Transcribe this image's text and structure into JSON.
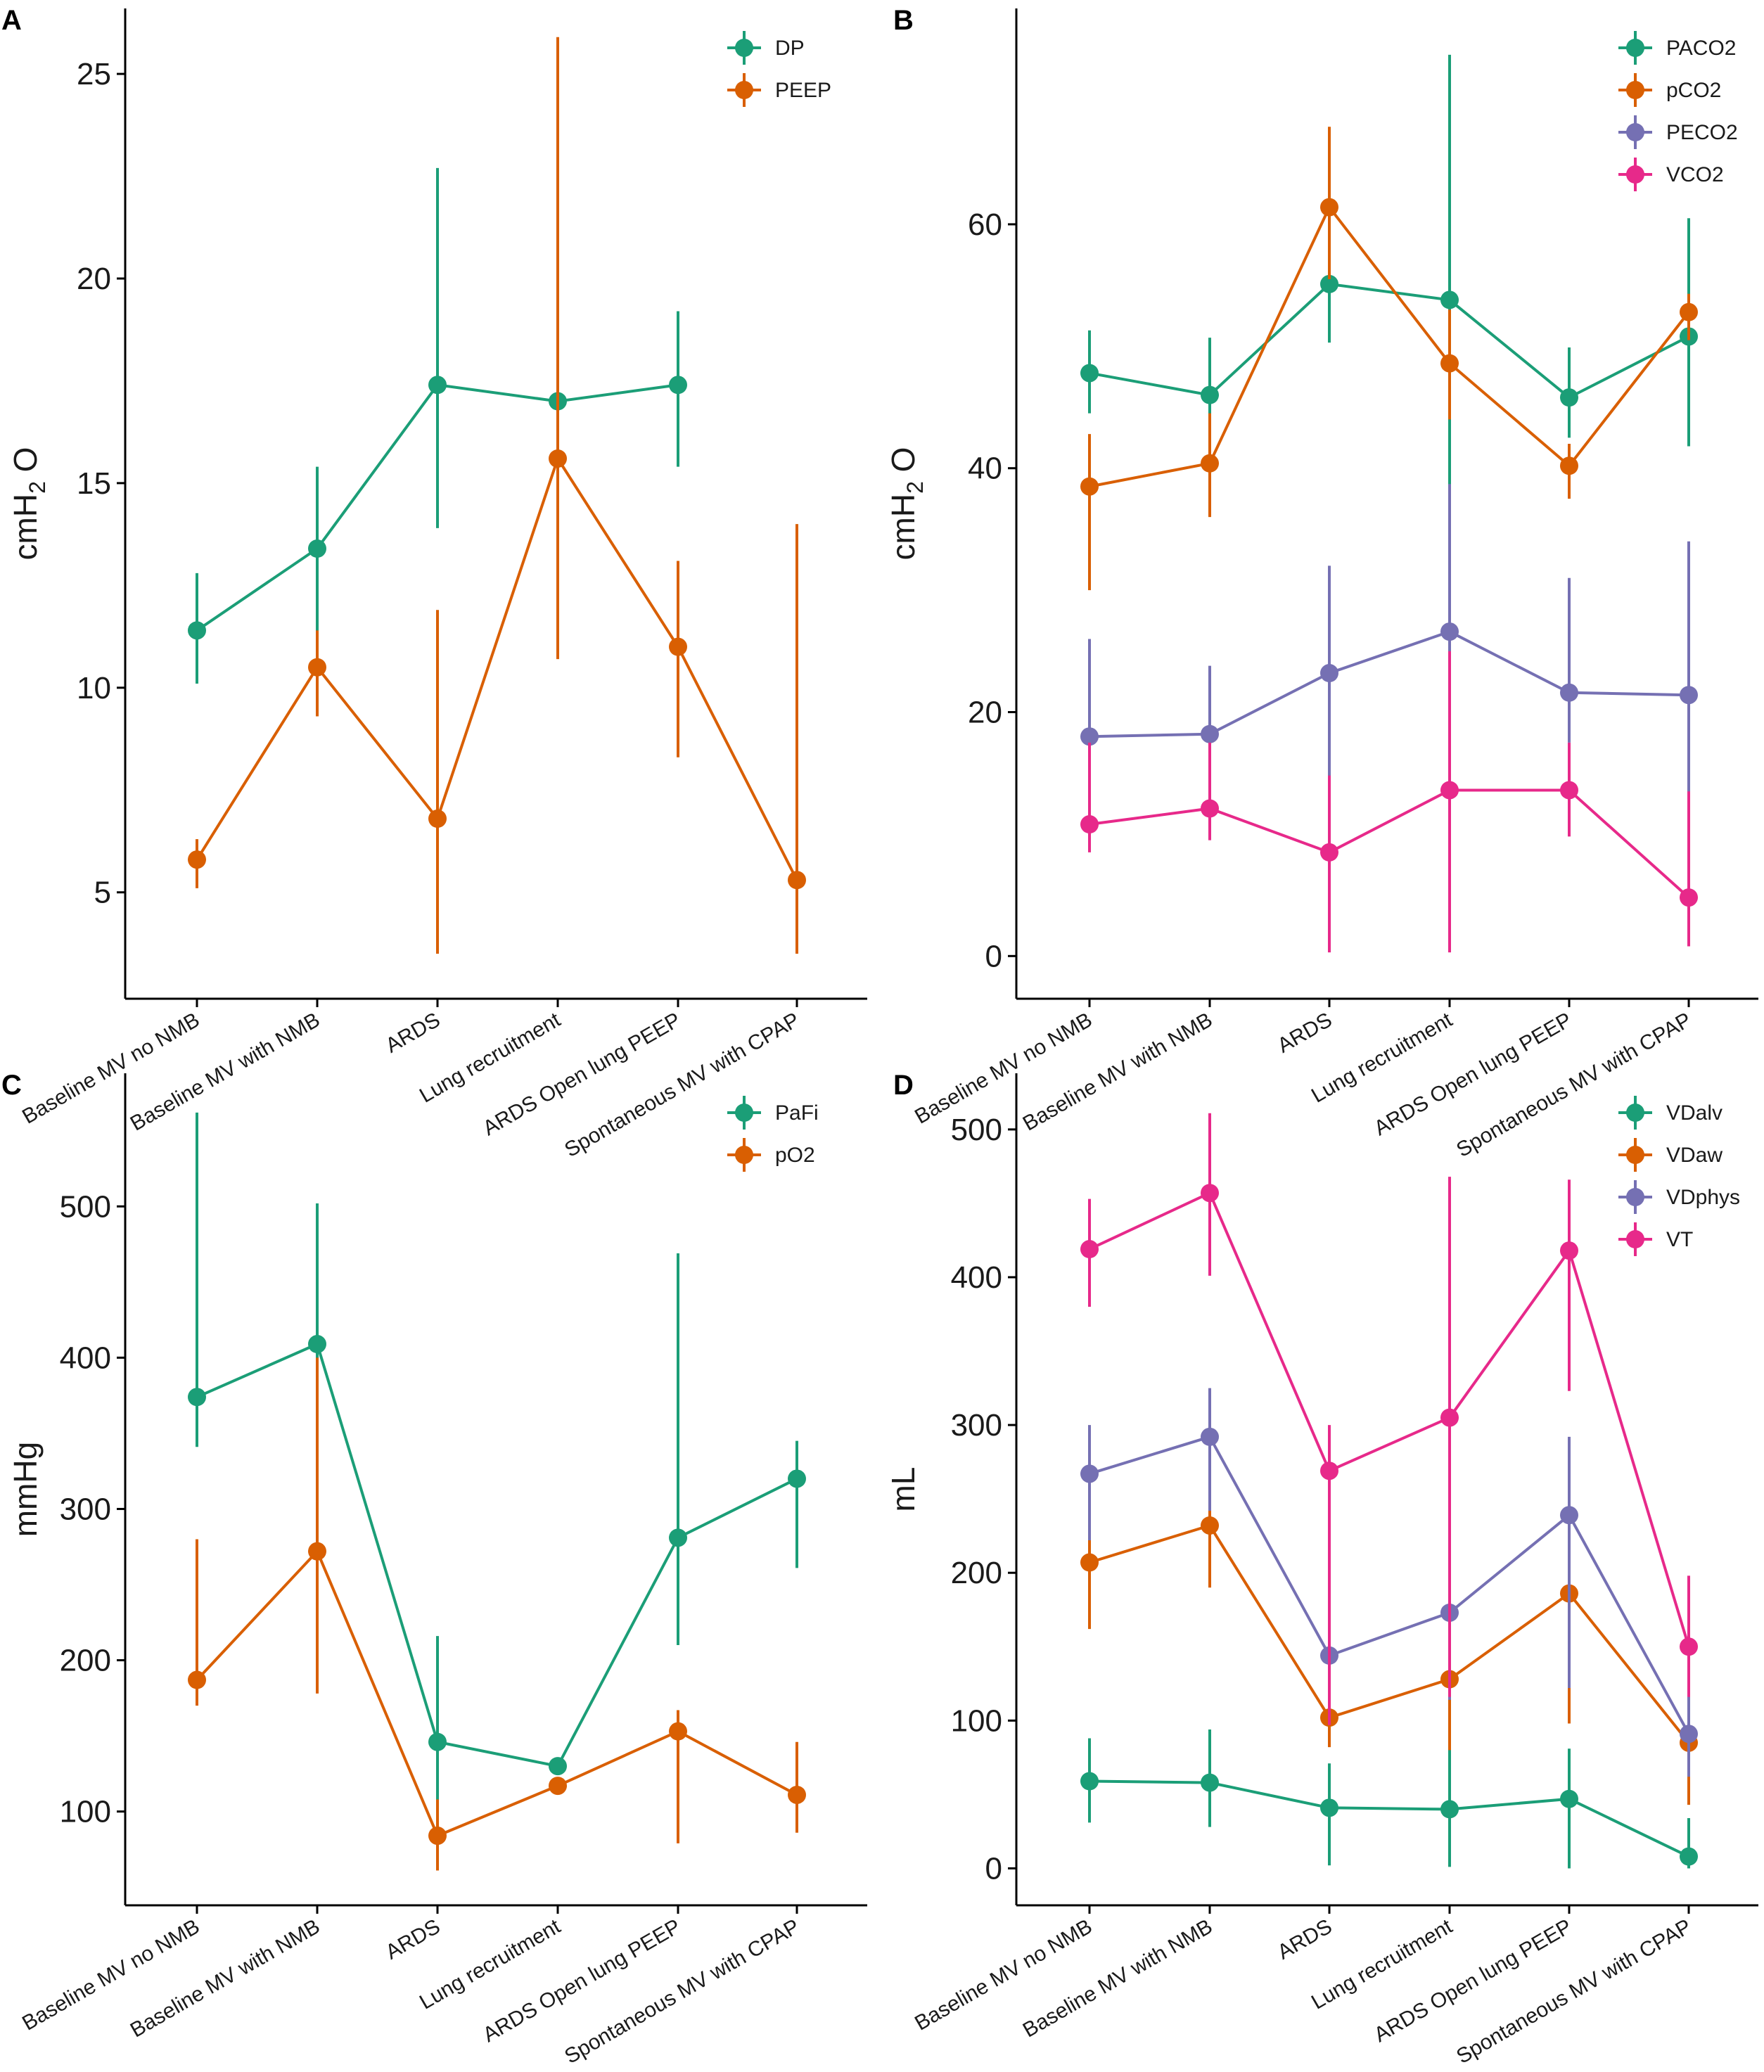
{
  "figure": {
    "x_categories": [
      "Baseline MV no NMB",
      "Baseline MV with NMB",
      "ARDS",
      "Lung recruitment",
      "ARDS Open lung PEEP",
      "Spontaneous MV with CPAP"
    ]
  },
  "chart_data": [
    {
      "panel": "A",
      "type": "line",
      "ylabel_main": "cmH",
      "ylabel_sub": "2",
      "ylabel_tail": " O",
      "ylim": [
        2.4,
        26.6
      ],
      "yticks": [
        5,
        10,
        15,
        20,
        25
      ],
      "legend_position": "top-right",
      "series": [
        {
          "name": "DP",
          "color": "#1b9e77",
          "values": [
            11.4,
            13.4,
            17.4,
            17.0,
            17.4,
            null
          ],
          "lower": [
            10.1,
            11.2,
            13.9,
            13.8,
            15.4,
            null
          ],
          "upper": [
            12.8,
            15.4,
            22.7,
            23.1,
            19.2,
            null
          ]
        },
        {
          "name": "PEEP",
          "color": "#d95f02",
          "values": [
            5.8,
            10.5,
            6.8,
            15.6,
            11.0,
            5.3
          ],
          "lower": [
            5.1,
            9.3,
            3.5,
            10.7,
            8.3,
            3.5
          ],
          "upper": [
            6.3,
            11.4,
            11.9,
            25.9,
            13.1,
            14.0
          ]
        }
      ]
    },
    {
      "panel": "B",
      "type": "line",
      "ylabel_main": "cmH",
      "ylabel_sub": "2",
      "ylabel_tail": " O",
      "ylim": [
        -3.5,
        77.7
      ],
      "yticks": [
        0,
        20,
        40,
        60
      ],
      "legend_position": "top-right",
      "series": [
        {
          "name": "PACO2",
          "color": "#1b9e77",
          "values": [
            47.8,
            46.0,
            55.1,
            53.8,
            45.8,
            50.8
          ],
          "lower": [
            44.5,
            43.0,
            50.3,
            30.5,
            42.5,
            41.8
          ],
          "upper": [
            51.3,
            50.7,
            67.1,
            73.9,
            49.9,
            60.5
          ]
        },
        {
          "name": "pCO2",
          "color": "#d95f02",
          "values": [
            38.5,
            40.4,
            61.4,
            48.6,
            40.2,
            52.8
          ],
          "lower": [
            30.0,
            36.0,
            55.5,
            44.0,
            37.5,
            50.5
          ],
          "upper": [
            42.8,
            44.5,
            68.0,
            53.0,
            42.0,
            54.3
          ]
        },
        {
          "name": "PECO2",
          "color": "#7570b3",
          "values": [
            18.0,
            18.2,
            23.2,
            26.6,
            21.6,
            21.4
          ],
          "lower": [
            15.0,
            14.5,
            1.0,
            0.5,
            17.5,
            5.5
          ],
          "upper": [
            26.0,
            23.8,
            32.0,
            38.7,
            31.0,
            34.0
          ]
        },
        {
          "name": "VCO2",
          "color": "#e7298a",
          "values": [
            10.8,
            12.1,
            8.5,
            13.6,
            13.6,
            4.8
          ],
          "lower": [
            8.5,
            9.5,
            0.3,
            0.3,
            9.8,
            0.8
          ],
          "upper": [
            17.5,
            17.5,
            14.8,
            25.0,
            17.5,
            13.5
          ]
        }
      ]
    },
    {
      "panel": "C",
      "type": "line",
      "ylabel_main": "mmHg",
      "ylim": [
        38,
        588
      ],
      "yticks": [
        100,
        200,
        300,
        400,
        500
      ],
      "legend_position": "top-right",
      "series": [
        {
          "name": "PaFi",
          "color": "#1b9e77",
          "values": [
            374,
            409,
            146,
            130,
            281,
            320
          ],
          "lower": [
            341,
            357,
            78,
            130,
            210,
            261
          ],
          "upper": [
            562,
            502,
            216,
            130,
            469,
            345
          ]
        },
        {
          "name": "pO2",
          "color": "#d95f02",
          "values": [
            187,
            272,
            84,
            117,
            153,
            111
          ],
          "lower": [
            170,
            178,
            61,
            117,
            79,
            86
          ],
          "upper": [
            280,
            400,
            108,
            117,
            167,
            146
          ]
        }
      ]
    },
    {
      "panel": "D",
      "type": "line",
      "ylabel_main": "mL",
      "ylim": [
        -25,
        538
      ],
      "yticks": [
        0,
        100,
        200,
        300,
        400,
        500
      ],
      "legend_position": "top-right",
      "series": [
        {
          "name": "VDalv",
          "color": "#1b9e77",
          "values": [
            59,
            58,
            41,
            40,
            47,
            8
          ],
          "lower": [
            31,
            28,
            2,
            1,
            0,
            0
          ],
          "upper": [
            88,
            94,
            71,
            94,
            81,
            34
          ]
        },
        {
          "name": "VDaw",
          "color": "#d95f02",
          "values": [
            207,
            232,
            102,
            128,
            186,
            85
          ],
          "lower": [
            162,
            190,
            82,
            80,
            98,
            43
          ],
          "upper": [
            240,
            268,
            128,
            214,
            229,
            130
          ]
        },
        {
          "name": "VDphys",
          "color": "#7570b3",
          "values": [
            267,
            292,
            144,
            173,
            239,
            91
          ],
          "lower": [
            222,
            242,
            108,
            114,
            122,
            62
          ],
          "upper": [
            300,
            325,
            178,
            224,
            292,
            117
          ]
        },
        {
          "name": "VT",
          "color": "#e7298a",
          "values": [
            419,
            457,
            269,
            305,
            418,
            150
          ],
          "lower": [
            380,
            401,
            97,
            116,
            323,
            116
          ],
          "upper": [
            453,
            511,
            300,
            468,
            466,
            198
          ]
        }
      ]
    }
  ]
}
